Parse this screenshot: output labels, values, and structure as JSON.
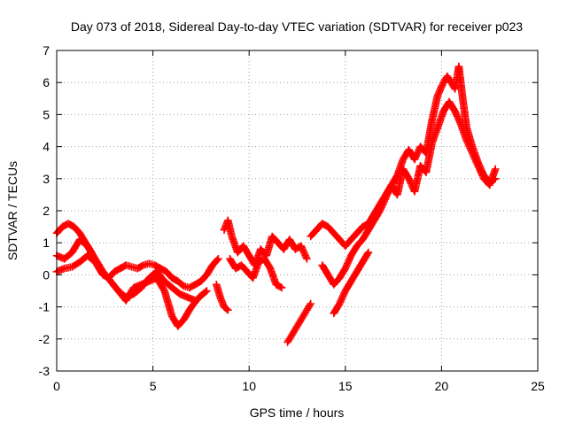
{
  "chart_data": {
    "type": "scatter",
    "title": "Day 073 of 2018, Sidereal Day-to-day VTEC variation (SDTVAR) for receiver p023",
    "xlabel": "GPS time / hours",
    "ylabel": "SDTVAR / TECUs",
    "xlim": [
      0,
      25
    ],
    "ylim": [
      -3,
      7
    ],
    "xticks": [
      0,
      5,
      10,
      15,
      20,
      25
    ],
    "yticks": [
      -3,
      -2,
      -1,
      0,
      1,
      2,
      3,
      4,
      5,
      6,
      7
    ],
    "grid": true,
    "marker": "+",
    "series_color": "#ff0000",
    "series": [
      {
        "name": "track-a",
        "x": [
          0.0,
          0.3,
          0.6,
          0.9,
          1.2,
          1.5,
          1.8,
          2.1,
          2.4,
          2.7,
          3.0,
          3.3,
          3.6,
          3.9,
          4.2,
          4.5,
          4.8,
          5.1,
          5.4,
          5.7,
          6.0,
          6.3,
          6.6,
          6.9,
          7.2,
          7.5,
          7.8,
          8.1,
          8.4
        ],
        "y": [
          1.3,
          1.5,
          1.6,
          1.5,
          1.3,
          1.0,
          0.7,
          0.3,
          0.0,
          -0.1,
          0.1,
          0.2,
          0.3,
          0.25,
          0.2,
          0.3,
          0.35,
          0.3,
          0.2,
          0.1,
          -0.1,
          -0.2,
          -0.35,
          -0.4,
          -0.3,
          -0.2,
          0.0,
          0.3,
          0.5
        ]
      },
      {
        "name": "track-b",
        "x": [
          0.0,
          0.4,
          0.8,
          1.2,
          1.6,
          2.0,
          2.4,
          2.8,
          3.2,
          3.6,
          4.0,
          4.4,
          4.8,
          5.2,
          5.6,
          6.0,
          6.3,
          6.6,
          7.0,
          7.4,
          7.8
        ],
        "y": [
          0.6,
          0.5,
          0.7,
          1.1,
          0.9,
          0.5,
          0.1,
          -0.2,
          -0.5,
          -0.8,
          -0.4,
          -0.3,
          -0.2,
          -0.1,
          -0.5,
          -1.3,
          -1.6,
          -1.4,
          -1.0,
          -0.7,
          -0.5
        ]
      },
      {
        "name": "track-c",
        "x": [
          0.0,
          0.4,
          0.8,
          1.2,
          1.6,
          2.0,
          2.4,
          2.8,
          3.2,
          3.6,
          4.0,
          4.4,
          4.8,
          5.2,
          5.6,
          6.0,
          6.4,
          6.8,
          7.2
        ],
        "y": [
          0.1,
          0.2,
          0.25,
          0.4,
          0.6,
          0.4,
          0.1,
          -0.2,
          -0.5,
          -0.7,
          -0.6,
          -0.4,
          -0.1,
          0.1,
          -0.2,
          -0.4,
          -0.6,
          -0.7,
          -0.8
        ]
      },
      {
        "name": "track-d",
        "x": [
          8.7,
          8.9,
          9.1,
          9.4,
          9.7,
          10.0,
          10.3,
          10.6,
          10.9,
          11.2,
          11.5,
          11.8,
          12.1,
          12.4,
          12.7,
          13.0
        ],
        "y": [
          1.4,
          1.7,
          1.2,
          0.7,
          0.9,
          0.6,
          0.3,
          0.8,
          0.6,
          1.2,
          1.0,
          0.8,
          1.1,
          0.8,
          0.9,
          0.5
        ]
      },
      {
        "name": "track-e",
        "x": [
          9.0,
          9.3,
          9.6,
          9.9,
          10.2,
          10.5,
          10.8,
          11.1,
          11.4,
          11.7
        ],
        "y": [
          0.5,
          0.2,
          0.3,
          0.1,
          -0.1,
          0.4,
          0.5,
          0.2,
          -0.3,
          -0.4
        ]
      },
      {
        "name": "track-f",
        "x": [
          8.3,
          8.5,
          8.7,
          8.9
        ],
        "y": [
          -0.3,
          -0.7,
          -1.0,
          -1.1
        ]
      },
      {
        "name": "track-g",
        "x": [
          12.0,
          12.2,
          12.4,
          12.6,
          12.8,
          13.0,
          13.2
        ],
        "y": [
          -2.1,
          -1.9,
          -1.7,
          -1.5,
          -1.3,
          -1.1,
          -0.9
        ]
      },
      {
        "name": "track-h",
        "x": [
          13.2,
          13.5,
          13.8,
          14.1,
          14.4,
          14.7,
          15.0,
          15.3,
          15.6,
          15.9,
          16.2,
          16.5,
          16.8,
          17.1,
          17.4,
          17.7,
          18.0,
          18.3,
          18.6,
          18.9,
          19.2,
          19.5,
          19.8,
          20.1,
          20.3,
          20.5,
          20.7,
          20.9,
          21.1,
          21.3,
          21.6,
          21.9,
          22.2,
          22.5,
          22.8
        ],
        "y": [
          1.2,
          1.4,
          1.6,
          1.5,
          1.3,
          1.1,
          0.9,
          1.1,
          1.3,
          1.5,
          1.6,
          1.9,
          2.2,
          2.5,
          2.8,
          3.1,
          3.6,
          3.9,
          3.6,
          4.0,
          3.8,
          4.8,
          5.6,
          6.0,
          6.2,
          6.0,
          5.8,
          6.5,
          5.5,
          4.6,
          4.0,
          3.5,
          3.1,
          2.9,
          3.0
        ]
      },
      {
        "name": "track-i",
        "x": [
          13.8,
          14.1,
          14.4,
          14.7,
          15.0,
          15.3,
          15.6,
          15.9,
          16.2,
          16.5,
          16.8,
          17.1,
          17.4,
          17.7,
          18.0,
          18.3,
          18.6,
          18.9,
          19.2,
          19.5,
          19.8,
          20.1,
          20.4,
          20.7,
          21.0,
          21.3,
          21.6,
          21.9,
          22.2,
          22.5,
          22.8
        ],
        "y": [
          0.3,
          0.0,
          -0.3,
          -0.1,
          0.2,
          0.6,
          0.9,
          1.1,
          1.4,
          1.7,
          2.0,
          2.4,
          2.8,
          2.5,
          3.3,
          3.0,
          2.6,
          3.4,
          3.2,
          4.1,
          4.6,
          5.1,
          5.4,
          5.1,
          4.7,
          4.2,
          3.8,
          3.4,
          3.0,
          2.8,
          3.3
        ]
      },
      {
        "name": "track-j",
        "x": [
          14.4,
          14.7,
          15.0,
          15.3,
          15.6,
          15.9,
          16.2
        ],
        "y": [
          -1.2,
          -0.9,
          -0.5,
          -0.2,
          0.1,
          0.4,
          0.7
        ]
      }
    ]
  }
}
